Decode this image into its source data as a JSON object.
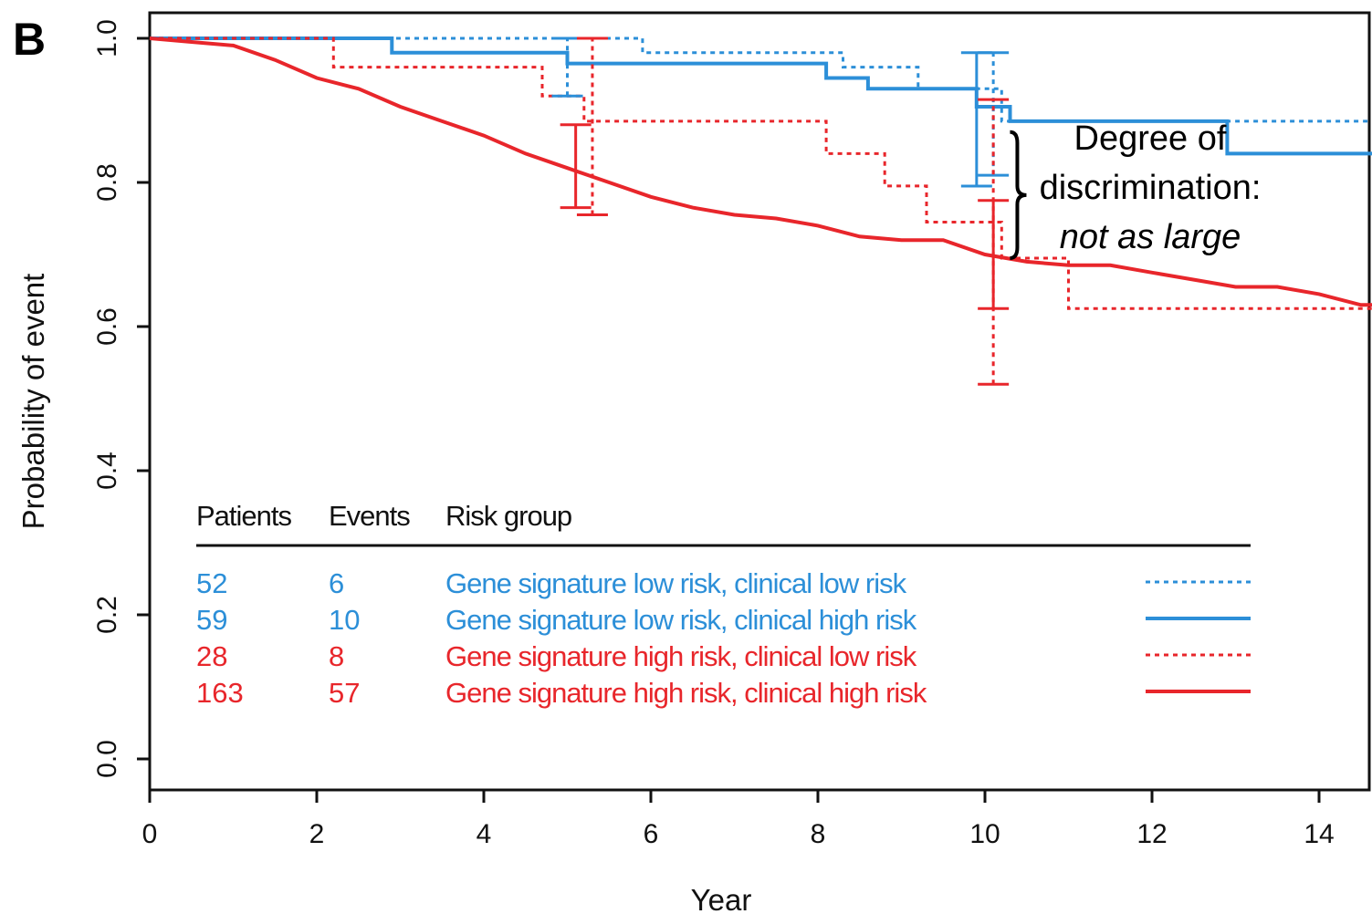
{
  "chart_data": {
    "type": "line",
    "panel_label": "B",
    "xlabel": "Year",
    "ylabel": "Probability of event",
    "xlim": [
      0,
      15
    ],
    "ylim": [
      0,
      1
    ],
    "x_ticks": [
      0,
      2,
      4,
      6,
      8,
      10,
      12,
      14
    ],
    "x_tick_labels": [
      "0",
      "2",
      "4",
      "6",
      "8",
      "10",
      "12",
      "14"
    ],
    "y_ticks": [
      0,
      0.2,
      0.4,
      0.6,
      0.8,
      1.0
    ],
    "y_tick_labels": [
      "0.0",
      "0.2",
      "0.4",
      "0.6",
      "0.8",
      "1.0"
    ],
    "grid": false,
    "legend": {
      "placement": "bottom-left",
      "headers": [
        "Patients",
        "Events",
        "Risk group"
      ]
    },
    "series": [
      {
        "name": "Gene signature low risk, clinical low risk",
        "patients": "52",
        "events": "6",
        "color": "#2c8fd8",
        "dash": "dotted",
        "x": [
          0,
          5.9,
          5.9,
          8.3,
          8.3,
          9.2,
          9.2,
          10.2,
          10.2,
          15
        ],
        "y": [
          1.0,
          1.0,
          0.98,
          0.98,
          0.96,
          0.96,
          0.93,
          0.93,
          0.885,
          0.885
        ],
        "ci": [
          {
            "x": 5.0,
            "low": 0.92,
            "high": 1.0
          },
          {
            "x": 10.1,
            "low": 0.81,
            "high": 0.98
          }
        ]
      },
      {
        "name": "Gene signature low risk, clinical high risk",
        "patients": "59",
        "events": "10",
        "color": "#2c8fd8",
        "dash": "solid",
        "x": [
          0,
          2.9,
          2.9,
          5.0,
          5.0,
          8.1,
          8.1,
          8.6,
          8.6,
          9.9,
          9.9,
          10.3,
          10.3,
          12.9,
          12.9,
          15
        ],
        "y": [
          1.0,
          1.0,
          0.98,
          0.98,
          0.965,
          0.965,
          0.945,
          0.945,
          0.93,
          0.93,
          0.905,
          0.905,
          0.885,
          0.885,
          0.84,
          0.84
        ],
        "ci": [
          {
            "x": 9.9,
            "low": 0.795,
            "high": 0.98
          }
        ]
      },
      {
        "name": "Gene signature high risk, clinical low risk",
        "patients": "28",
        "events": "8",
        "color": "#e8262b",
        "dash": "dotted",
        "x": [
          0,
          2.2,
          2.2,
          4.7,
          4.7,
          5.2,
          5.2,
          8.1,
          8.1,
          8.8,
          8.8,
          9.3,
          9.3,
          10.2,
          10.2,
          11.0,
          11.0,
          15
        ],
        "y": [
          1.0,
          1.0,
          0.96,
          0.96,
          0.92,
          0.92,
          0.885,
          0.885,
          0.84,
          0.84,
          0.795,
          0.795,
          0.745,
          0.745,
          0.695,
          0.695,
          0.625,
          0.625
        ],
        "ci": [
          {
            "x": 5.3,
            "low": 0.755,
            "high": 1.0
          },
          {
            "x": 10.1,
            "low": 0.52,
            "high": 0.915
          }
        ]
      },
      {
        "name": "Gene signature high risk, clinical high risk",
        "patients": "163",
        "events": "57",
        "color": "#e8262b",
        "dash": "solid",
        "x": [
          0,
          0.5,
          1.0,
          1.5,
          2.0,
          2.5,
          3.0,
          3.5,
          4.0,
          4.5,
          5.0,
          5.5,
          6.0,
          6.5,
          7.0,
          7.5,
          8.0,
          8.5,
          9.0,
          9.5,
          10.0,
          10.5,
          11.0,
          11.5,
          12.0,
          12.5,
          13.0,
          13.5,
          14.0,
          14.5,
          15.0
        ],
        "y": [
          1.0,
          0.995,
          0.99,
          0.97,
          0.945,
          0.93,
          0.905,
          0.885,
          0.865,
          0.84,
          0.82,
          0.8,
          0.78,
          0.765,
          0.755,
          0.75,
          0.74,
          0.725,
          0.72,
          0.72,
          0.7,
          0.69,
          0.685,
          0.685,
          0.675,
          0.665,
          0.655,
          0.655,
          0.645,
          0.63,
          0.63
        ],
        "ci": [
          {
            "x": 5.1,
            "low": 0.765,
            "high": 0.88
          },
          {
            "x": 10.1,
            "low": 0.625,
            "high": 0.775
          }
        ]
      }
    ],
    "annotation": {
      "line1": "Degree of",
      "line2": "discrimination:",
      "line3": "not as large",
      "x": 10.3,
      "y_low": 0.695,
      "y_high": 0.87
    }
  }
}
